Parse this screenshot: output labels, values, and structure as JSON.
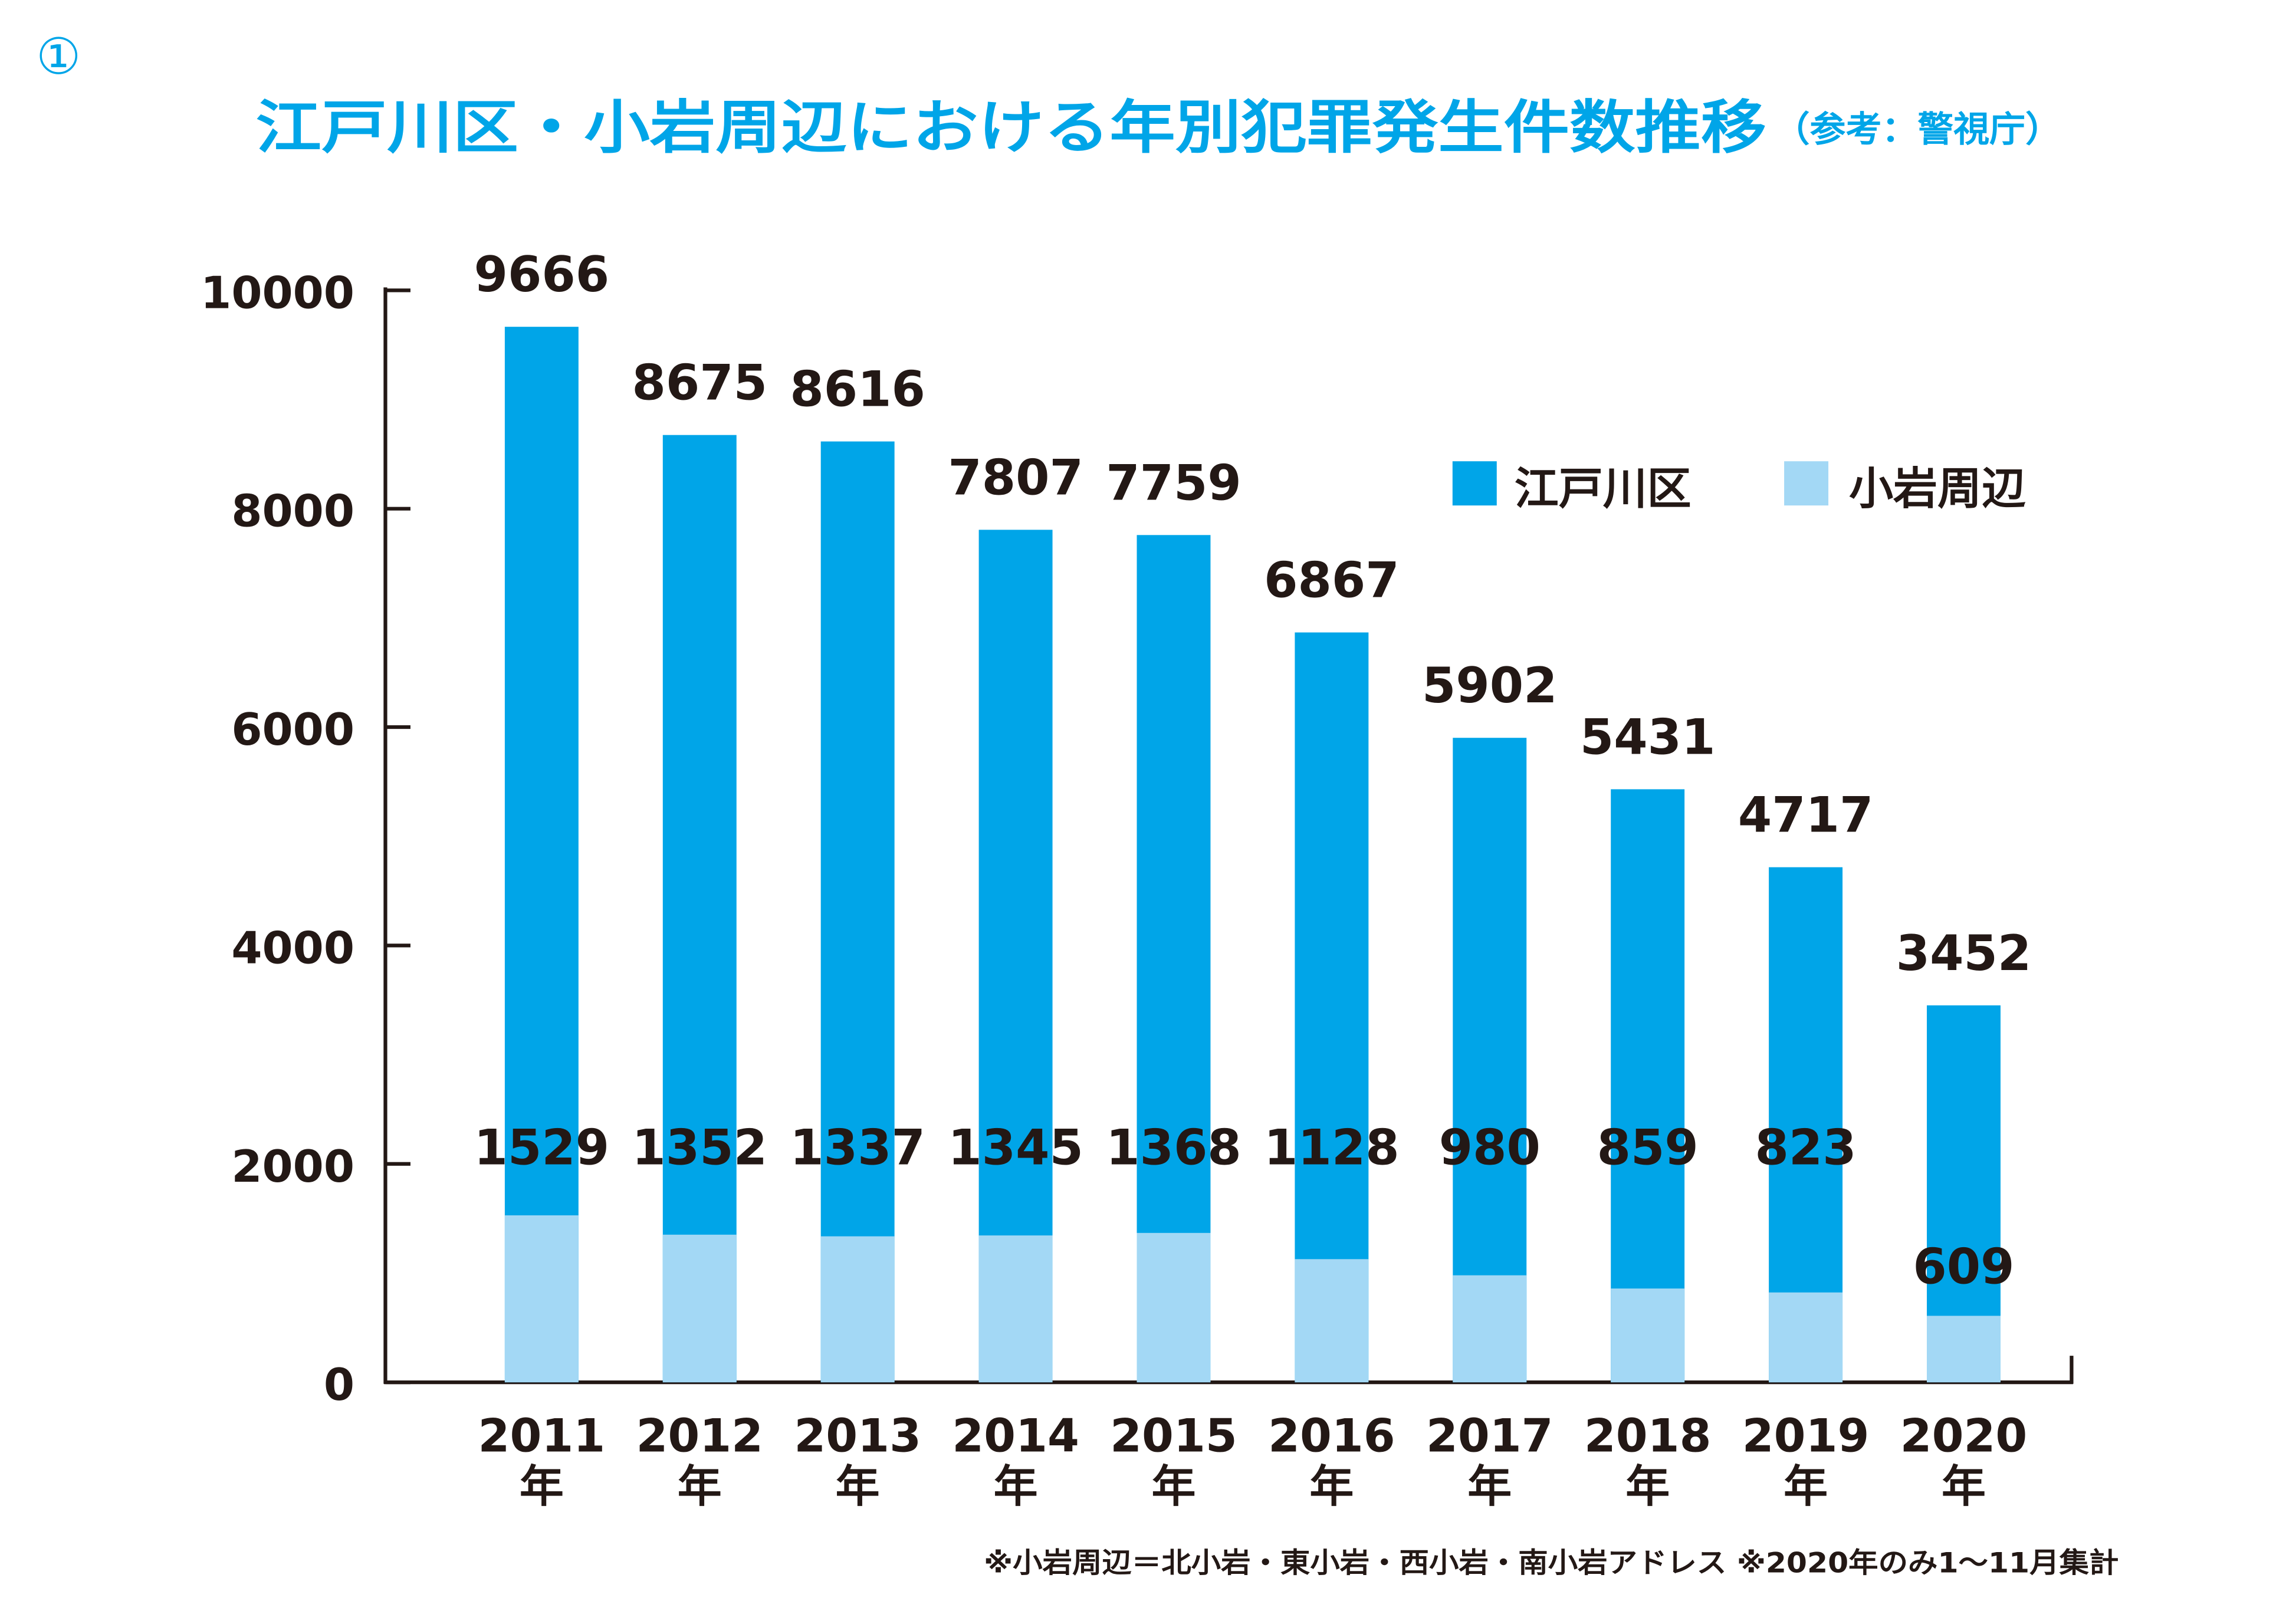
{
  "badge": "①",
  "title": "江戸川区・小岩周辺における年別犯罪発生件数推移",
  "source": "（参考：警視庁）",
  "footnote": "※小岩周辺＝北小岩・東小岩・西小岩・南小岩アドレス ※2020年のみ1～11月集計",
  "colors": {
    "edogawa": "#00a5e8",
    "koiwa": "#a3d8f5",
    "title": "#00a5e8",
    "text": "#231815"
  },
  "chart_data": {
    "type": "bar",
    "title": "江戸川区・小岩周辺における年別犯罪発生件数推移",
    "categories": [
      "2011",
      "2012",
      "2013",
      "2014",
      "2015",
      "2016",
      "2017",
      "2018",
      "2019",
      "2020"
    ],
    "category_suffix": "年",
    "series": [
      {
        "name": "江戸川区",
        "values": [
          9666,
          8675,
          8616,
          7807,
          7759,
          6867,
          5902,
          5431,
          4717,
          3452
        ]
      },
      {
        "name": "小岩周辺",
        "values": [
          1529,
          1352,
          1337,
          1345,
          1368,
          1128,
          980,
          859,
          823,
          609
        ]
      }
    ],
    "yticks": [
      "0",
      "2000",
      "4000",
      "6000",
      "8000",
      "10000"
    ],
    "ylim": [
      0,
      10000
    ],
    "xlabel": "",
    "ylabel": "",
    "grid": false,
    "legend": "top-right"
  }
}
